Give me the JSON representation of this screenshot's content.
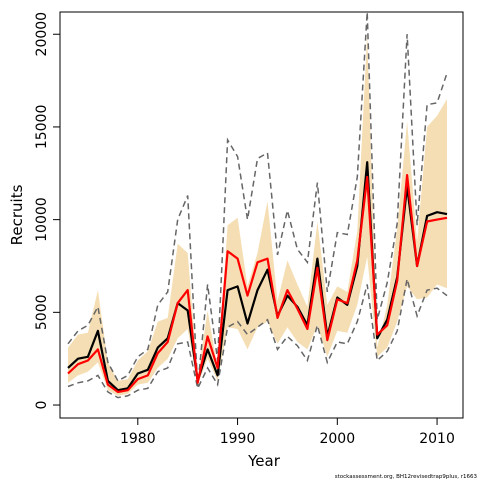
{
  "chart_data": {
    "type": "line",
    "title": "",
    "xlabel": "Year",
    "ylabel": "Recruits",
    "credit": "stockassessment.org, BH12revisedtrap9plus, r1663",
    "xlim": [
      1972.2,
      2012.6
    ],
    "ylim": [
      -700,
      21200
    ],
    "x_ticks": [
      1980,
      1990,
      2000,
      2010
    ],
    "y_ticks": [
      0,
      5000,
      10000,
      15000,
      20000
    ],
    "grid": false,
    "legend": "none",
    "colors": {
      "band": "#f5deb3",
      "black_line": "#000000",
      "red_line": "#ff0000",
      "dashed": "#666666"
    },
    "years": [
      1973,
      1974,
      1975,
      1976,
      1977,
      1978,
      1979,
      1980,
      1981,
      1982,
      1983,
      1984,
      1985,
      1986,
      1987,
      1988,
      1989,
      1990,
      1991,
      1992,
      1993,
      1994,
      1995,
      1996,
      1997,
      1998,
      1999,
      2000,
      2001,
      2002,
      2003,
      2004,
      2005,
      2006,
      2007,
      2008,
      2009,
      2010,
      2011
    ],
    "series": [
      {
        "role": "upper-band",
        "values": [
          3100,
          3800,
          3900,
          6200,
          2300,
          1300,
          1400,
          2400,
          2900,
          4500,
          4700,
          8700,
          8200,
          1500,
          5100,
          2000,
          9700,
          10100,
          6400,
          8200,
          11000,
          5600,
          7800,
          6500,
          5300,
          9900,
          5400,
          6400,
          6100,
          9400,
          20000,
          3100,
          5400,
          9500,
          15300,
          8800,
          15000,
          15600,
          16500
        ]
      },
      {
        "role": "lower-band",
        "values": [
          1200,
          1600,
          1800,
          2300,
          800,
          500,
          600,
          1100,
          1200,
          2000,
          2500,
          3600,
          4100,
          1100,
          2500,
          1300,
          4200,
          4100,
          3000,
          4200,
          4500,
          3300,
          4200,
          3400,
          3000,
          4300,
          2600,
          4000,
          3900,
          5400,
          8000,
          2600,
          3100,
          4500,
          6400,
          5700,
          5800,
          6500,
          6300
        ]
      },
      {
        "role": "upper-dashed",
        "values": [
          3300,
          4000,
          4300,
          5300,
          2300,
          1300,
          1600,
          2600,
          3000,
          5400,
          6100,
          10000,
          11300,
          1000,
          6500,
          2400,
          14300,
          13400,
          10000,
          13300,
          13600,
          8100,
          10500,
          8400,
          7700,
          12000,
          6100,
          9300,
          9200,
          12300,
          21500,
          4600,
          6600,
          9800,
          20000,
          9700,
          16200,
          16300,
          17900
        ]
      },
      {
        "role": "lower-dashed",
        "values": [
          1000,
          1200,
          1300,
          1600,
          700,
          400,
          500,
          800,
          900,
          1800,
          2000,
          3300,
          3400,
          900,
          2000,
          1100,
          4200,
          4500,
          3800,
          4200,
          4600,
          3000,
          3700,
          3200,
          2400,
          4300,
          2300,
          3400,
          3300,
          4500,
          6500,
          2400,
          2900,
          4000,
          6800,
          4800,
          6200,
          6300,
          5900
        ]
      },
      {
        "role": "black-line",
        "values": [
          2000,
          2500,
          2600,
          4000,
          1300,
          800,
          900,
          1700,
          1900,
          3100,
          3600,
          5500,
          5100,
          1300,
          3000,
          1600,
          6200,
          6400,
          4400,
          6200,
          7300,
          4800,
          5900,
          5300,
          4300,
          7900,
          3700,
          5800,
          5400,
          7500,
          13100,
          3600,
          4600,
          6900,
          11800,
          7500,
          10200,
          10400,
          10300
        ]
      },
      {
        "role": "red-line",
        "values": [
          1700,
          2200,
          2400,
          3000,
          1100,
          700,
          800,
          1400,
          1600,
          2800,
          3400,
          5500,
          6200,
          1200,
          3700,
          2000,
          8300,
          7900,
          5900,
          7700,
          7900,
          4700,
          6200,
          5200,
          4100,
          7400,
          3500,
          5700,
          5500,
          7800,
          12300,
          3800,
          4300,
          6700,
          12400,
          7500,
          9900,
          10000,
          10100
        ]
      }
    ]
  }
}
